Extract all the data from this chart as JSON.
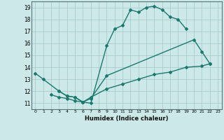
{
  "line1_x": [
    0,
    1,
    3,
    4,
    5,
    6,
    7,
    9,
    10,
    11,
    12,
    13,
    14,
    15,
    16,
    17,
    18,
    19
  ],
  "line1_y": [
    13.5,
    13.0,
    12.0,
    11.6,
    11.5,
    11.1,
    11.0,
    15.8,
    17.2,
    17.5,
    18.8,
    18.6,
    19.0,
    19.1,
    18.8,
    18.2,
    18.0,
    17.2
  ],
  "line2_x": [
    3,
    4,
    5,
    6,
    7,
    9,
    20,
    21,
    22
  ],
  "line2_y": [
    12.0,
    11.6,
    11.5,
    11.1,
    11.4,
    13.3,
    16.3,
    15.3,
    14.3
  ],
  "line3_x": [
    2,
    3,
    4,
    5,
    6,
    7,
    9,
    11,
    13,
    15,
    17,
    19,
    21,
    22
  ],
  "line3_y": [
    11.7,
    11.5,
    11.4,
    11.2,
    11.1,
    11.5,
    12.2,
    12.6,
    13.0,
    13.4,
    13.6,
    14.0,
    14.1,
    14.3
  ],
  "line_color": "#1a7a6e",
  "bg_color": "#cce8e8",
  "grid_color": "#aacccc",
  "xlabel": "Humidex (Indice chaleur)",
  "xlim": [
    -0.5,
    23.5
  ],
  "ylim": [
    10.5,
    19.5
  ],
  "xticks": [
    0,
    1,
    2,
    3,
    4,
    5,
    6,
    7,
    8,
    9,
    10,
    11,
    12,
    13,
    14,
    15,
    16,
    17,
    18,
    19,
    20,
    21,
    22,
    23
  ],
  "yticks": [
    11,
    12,
    13,
    14,
    15,
    16,
    17,
    18,
    19
  ],
  "marker": "D",
  "markersize": 2.0,
  "linewidth": 1.0
}
